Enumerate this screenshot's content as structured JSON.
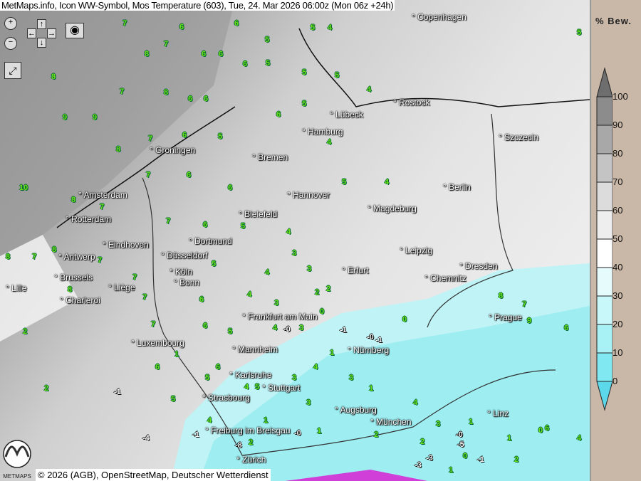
{
  "title": "MetMaps.info, Icon WW-Symbol, Mos Temperature (603), Tue, 24. Mar 2026 06:00z (Mon 06z +24h)",
  "copyright": "© 2026 (AGB), OpenStreetMap, Deutscher Wetterdienst",
  "logo_text": "METMAPS",
  "controls": {
    "zoom_in": "zoom-in-icon",
    "zoom_out": "zoom-out-icon",
    "pan": "arrows-icon",
    "screenshot": "camera-icon",
    "fullscreen": "fullscreen-icon"
  },
  "legend": {
    "title": "% Bew.",
    "ticks": [
      "100",
      "90",
      "80",
      "70",
      "60",
      "50",
      "40",
      "30",
      "20",
      "10",
      "0"
    ],
    "colors": [
      "#6e6e6e",
      "#8c8c8c",
      "#a8a8a8",
      "#c4c4c4",
      "#dcdcdc",
      "#eeeeee",
      "#ffffff",
      "#e6fcfc",
      "#c8f8fa",
      "#a8f2f6",
      "#80e8f0",
      "#5cd8ea"
    ]
  },
  "cities": [
    "Copenhagen",
    "Rostock",
    "Lübeck",
    "Hamburg",
    "Szczecin",
    "Groningen",
    "Bremen",
    "Amsterdam",
    "Hannover",
    "Berlin",
    "Rotterdam",
    "Bielefeld",
    "Magdeburg",
    "Eindhoven",
    "Dortmund",
    "Düsseldorf",
    "Antwerp",
    "Leipzig",
    "Dresden",
    "Köln",
    "Brussels",
    "Erfurt",
    "Chemnitz",
    "Bonn",
    "Lille",
    "Liège",
    "Charleroi",
    "Prague",
    "Frankfurt am Main",
    "Luxembourg",
    "Mannheim",
    "Nürnberg",
    "Karlsruhe",
    "Stuttgart",
    "Strasbourg",
    "Augsburg",
    "Linz",
    "München",
    "Freiburg im Breisgau",
    "Zürich"
  ],
  "temperatures": [
    "7",
    "6",
    "6",
    "5",
    "5",
    "4",
    "8",
    "7",
    "6",
    "6",
    "6",
    "5",
    "8",
    "7",
    "8",
    "6",
    "6",
    "5",
    "5",
    "4",
    "9",
    "9",
    "8",
    "7",
    "6",
    "5",
    "6",
    "5",
    "4",
    "10",
    "8",
    "7",
    "7",
    "6",
    "6",
    "5",
    "4",
    "8",
    "7",
    "7",
    "6",
    "5",
    "4",
    "3",
    "8",
    "7",
    "7",
    "5",
    "4",
    "3",
    "2",
    "8",
    "7",
    "6",
    "4",
    "3",
    "2",
    "2",
    "7",
    "6",
    "5",
    "4",
    "3",
    "2",
    "1",
    "6",
    "5",
    "4",
    "3",
    "1",
    "-0",
    "0",
    "-1",
    "6",
    "5",
    "4",
    "3",
    "1",
    "-1",
    "-0",
    "0",
    "-1",
    "5",
    "4",
    "2",
    "1",
    "-0",
    "1",
    "2",
    "4",
    "3",
    "1",
    "-1",
    "-0",
    "1",
    "2",
    "0",
    "3",
    "2",
    "1",
    "0",
    "-3",
    "-3",
    "-5",
    "-8",
    "-4",
    "-1",
    "4",
    "6",
    "9",
    "8",
    "7",
    "6",
    "5",
    "5"
  ]
}
